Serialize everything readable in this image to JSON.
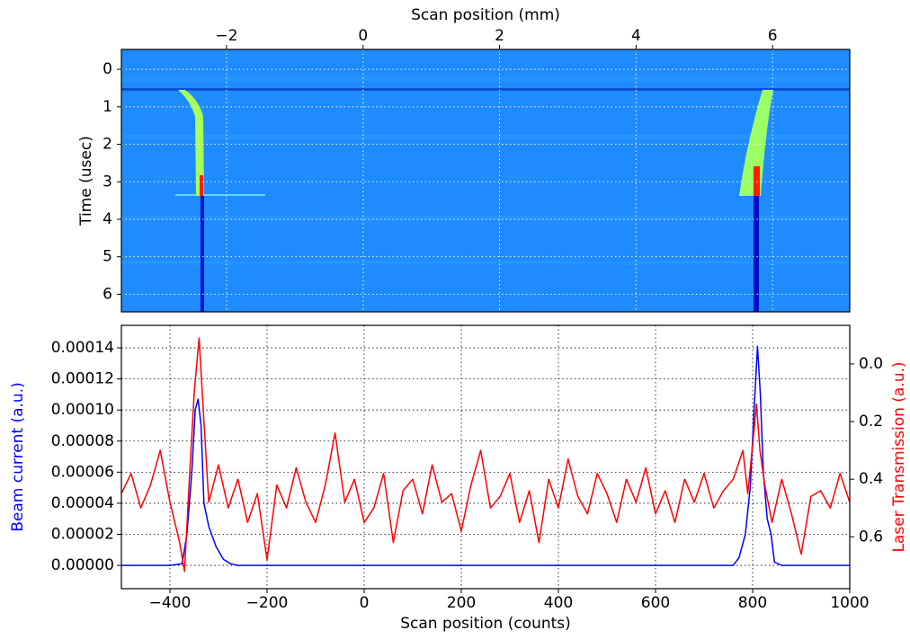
{
  "chart_data": [
    {
      "type": "heatmap",
      "xlabel": "Scan position (mm)",
      "ylabel": "Time (usec)",
      "xlim": [
        -3.54,
        7.13
      ],
      "xticks": [
        {
          "value": -2,
          "label": "−2"
        },
        0,
        2,
        4,
        6
      ],
      "ylim": [
        -0.53,
        6.47
      ],
      "y_inverted": true,
      "yticks": [
        0,
        1,
        2,
        3,
        4,
        5,
        6
      ],
      "grid": true
    },
    {
      "type": "line",
      "xlabel": "Scan position (counts)",
      "ylabel": "Beam current (a.u.)",
      "y2label": "Laser Transmission (a.u.)",
      "xlim": [
        -500,
        1000
      ],
      "xticks": [
        {
          "value": -400,
          "label": "−400"
        },
        {
          "value": -200,
          "label": "−200"
        },
        0,
        200,
        400,
        600,
        800,
        1000
      ],
      "ylim": [
        -1.5e-05,
        0.0001545
      ],
      "yticks": [
        {
          "value": 0,
          "label": "0.00000"
        },
        {
          "value": 2e-05,
          "label": "0.00002"
        },
        {
          "value": 4e-05,
          "label": "0.00004"
        },
        {
          "value": 6e-05,
          "label": "0.00006"
        },
        {
          "value": 8e-05,
          "label": "0.00008"
        },
        {
          "value": 0.0001,
          "label": "0.00010"
        },
        {
          "value": 0.00012,
          "label": "0.00012"
        },
        {
          "value": 0.00014,
          "label": "0.00014"
        }
      ],
      "y2lim": [
        -0.134,
        0.78
      ],
      "y2_inverted": true,
      "y2ticks": [
        {
          "value": 0,
          "label": "0.0"
        },
        0.2,
        0.4,
        0.6
      ],
      "grid": true,
      "series": [
        {
          "color": "#0000ff",
          "x": [
            -500,
            -400,
            -375,
            -365,
            -355,
            -348,
            -342,
            -336,
            -330,
            -320,
            -305,
            -290,
            -275,
            -260,
            760,
            772,
            785,
            795,
            803,
            810,
            816,
            822,
            830,
            838,
            845,
            860,
            1000
          ],
          "values": [
            0,
            0,
            1e-06,
            2e-05,
            6e-05,
            0.0001,
            0.000107,
            9e-05,
            4e-05,
            2.5e-05,
            1.2e-05,
            4e-06,
            1e-06,
            0,
            0,
            5e-06,
            2e-05,
            5e-05,
            0.0001,
            0.000141,
            0.00011,
            6e-05,
            3e-05,
            2e-05,
            2e-06,
            0,
            0
          ]
        },
        {
          "color": "#ff0000",
          "axis": "y2",
          "x": [
            -500,
            -480,
            -460,
            -440,
            -420,
            -400,
            -380,
            -370,
            -360,
            -350,
            -340,
            -330,
            -320,
            -300,
            -280,
            -260,
            -240,
            -220,
            -200,
            -180,
            -160,
            -140,
            -120,
            -100,
            -80,
            -60,
            -40,
            -20,
            0,
            20,
            40,
            60,
            80,
            100,
            120,
            140,
            160,
            180,
            200,
            220,
            240,
            260,
            280,
            300,
            320,
            340,
            360,
            380,
            400,
            420,
            440,
            460,
            480,
            500,
            520,
            540,
            560,
            580,
            600,
            620,
            640,
            660,
            680,
            700,
            720,
            740,
            760,
            780,
            790,
            800,
            808,
            815,
            825,
            840,
            860,
            880,
            900,
            920,
            940,
            960,
            980,
            1000
          ],
          "values": [
            0.45,
            0.38,
            0.5,
            0.42,
            0.3,
            0.48,
            0.62,
            0.72,
            0.4,
            0.1,
            -0.09,
            0.2,
            0.48,
            0.35,
            0.5,
            0.4,
            0.55,
            0.45,
            0.68,
            0.42,
            0.5,
            0.36,
            0.48,
            0.55,
            0.42,
            0.24,
            0.48,
            0.4,
            0.55,
            0.5,
            0.38,
            0.62,
            0.44,
            0.4,
            0.52,
            0.35,
            0.48,
            0.45,
            0.58,
            0.42,
            0.3,
            0.5,
            0.46,
            0.38,
            0.55,
            0.44,
            0.62,
            0.4,
            0.5,
            0.33,
            0.46,
            0.52,
            0.38,
            0.45,
            0.55,
            0.4,
            0.48,
            0.36,
            0.52,
            0.44,
            0.55,
            0.4,
            0.48,
            0.38,
            0.5,
            0.44,
            0.4,
            0.3,
            0.45,
            0.28,
            0.14,
            0.3,
            0.42,
            0.55,
            0.4,
            0.52,
            0.66,
            0.46,
            0.44,
            0.5,
            0.38,
            0.48
          ]
        }
      ]
    }
  ]
}
